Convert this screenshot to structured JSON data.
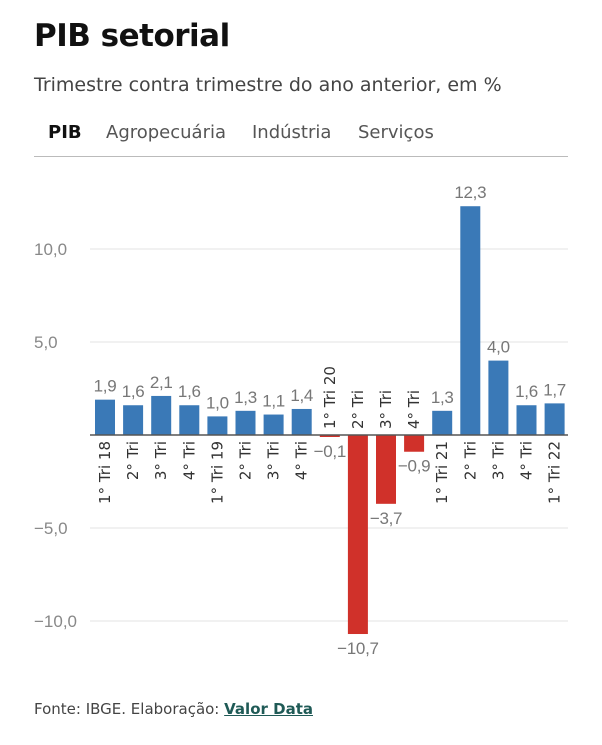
{
  "header": {
    "title": "PIB setorial",
    "subtitle": "Trimestre contra trimestre do ano anterior, em %"
  },
  "tabs": [
    {
      "label": "PIB",
      "active": true
    },
    {
      "label": "Agropecuária"
    },
    {
      "label": "Indústria"
    },
    {
      "label": "Serviços"
    }
  ],
  "footer": {
    "source": "Fonte: IBGE. Elaboração: ",
    "link": "Valor Data"
  },
  "chart_data": {
    "type": "bar",
    "categories": [
      "1° Tri 18",
      "2° Tri",
      "3° Tri",
      "4° Tri",
      "1° Tri 19",
      "2° Tri",
      "3° Tri",
      "4° Tri",
      "1° Tri 20",
      "2° Tri",
      "3° Tri",
      "4° Tri",
      "1° Tri 21",
      "2° Tri",
      "3° Tri",
      "4° Tri",
      "1° Tri 22"
    ],
    "values": [
      1.9,
      1.6,
      2.1,
      1.6,
      1.0,
      1.3,
      1.1,
      1.4,
      -0.1,
      -10.7,
      -3.7,
      -0.9,
      1.3,
      12.3,
      4.0,
      1.6,
      1.7
    ],
    "value_labels": [
      "1,9",
      "1,6",
      "2,1",
      "1,6",
      "1,0",
      "1,3",
      "1,1",
      "1,4",
      "−0,1",
      "−10,7",
      "−3,7",
      "−0,9",
      "1,3",
      "12,3",
      "4,0",
      "1,6",
      "1,7"
    ],
    "yticks": [
      10,
      5,
      -5,
      -10
    ],
    "ytick_labels": [
      "10,0",
      "5,0",
      "−5,0",
      "−10,0"
    ],
    "ylim": [
      -11.5,
      13.5
    ],
    "grid": true,
    "colors": {
      "positive": "#3a79b7",
      "negative": "#d0312a"
    }
  }
}
